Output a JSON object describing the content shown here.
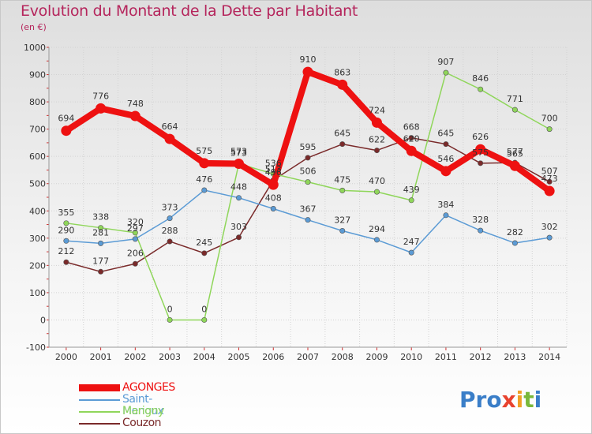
{
  "title": "Evolution du Montant de la Dette par Habitant",
  "subtitle": "(en €)",
  "logo": "Proxiti",
  "chart_data": {
    "type": "line",
    "x": [
      "2000",
      "2001",
      "2002",
      "2003",
      "2004",
      "2005",
      "2006",
      "2007",
      "2008",
      "2009",
      "2010",
      "2011",
      "2012",
      "2013",
      "2014"
    ],
    "ylim": [
      -100,
      1000
    ],
    "yticks": [
      -100,
      0,
      100,
      200,
      300,
      400,
      500,
      600,
      700,
      800,
      900,
      1000
    ],
    "grid": true,
    "legend_placement": "bottom-left",
    "series": [
      {
        "name": "AGONGES",
        "color": "#ee1111",
        "values": [
          694,
          776,
          748,
          664,
          575,
          573,
          496,
          910,
          863,
          724,
          620,
          546,
          626,
          565,
          473
        ]
      },
      {
        "name": "Saint-Menoux",
        "color": "#5b9bd5",
        "values": [
          290,
          281,
          297,
          373,
          476,
          448,
          408,
          367,
          327,
          294,
          247,
          384,
          328,
          282,
          302
        ]
      },
      {
        "name": "Marigny",
        "color": "#8fd65a",
        "values": [
          355,
          338,
          320,
          0,
          0,
          573,
          536,
          506,
          475,
          470,
          439,
          907,
          846,
          771,
          700
        ]
      },
      {
        "name": "Couzon",
        "color": "#7a2a2a",
        "values": [
          212,
          177,
          206,
          288,
          245,
          303,
          513,
          595,
          645,
          622,
          668,
          645,
          575,
          577,
          507
        ]
      }
    ]
  }
}
